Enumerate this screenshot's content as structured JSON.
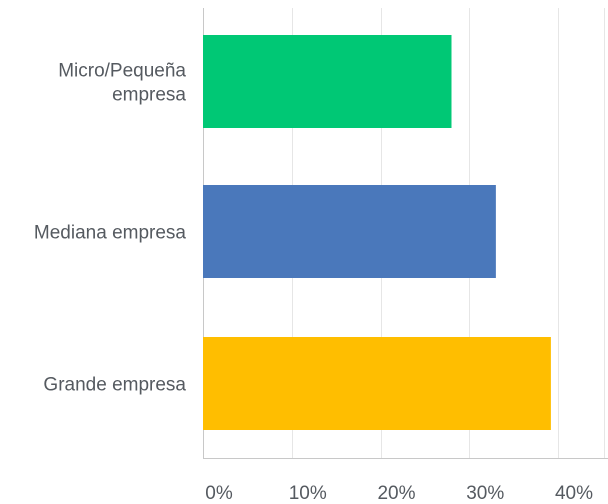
{
  "chart_data": {
    "type": "bar",
    "orientation": "horizontal",
    "categories": [
      "Micro/Pequeña empresa",
      "Mediana empresa",
      "Grande empresa"
    ],
    "category_label_lines": [
      [
        "Micro/Pequeña",
        "empresa"
      ],
      [
        "Mediana empresa"
      ],
      [
        "Grande empresa"
      ]
    ],
    "values": [
      28,
      33,
      39.2
    ],
    "colors": [
      "#00c875",
      "#4a78bb",
      "#ffbe00"
    ],
    "xlim": [
      0,
      40
    ],
    "xticks": [
      0,
      10,
      20,
      30,
      40
    ],
    "xtick_labels": [
      "0%",
      "10%",
      "20%",
      "30%",
      "40%"
    ],
    "grid": "vertical",
    "title": "",
    "xlabel": "",
    "ylabel": ""
  }
}
